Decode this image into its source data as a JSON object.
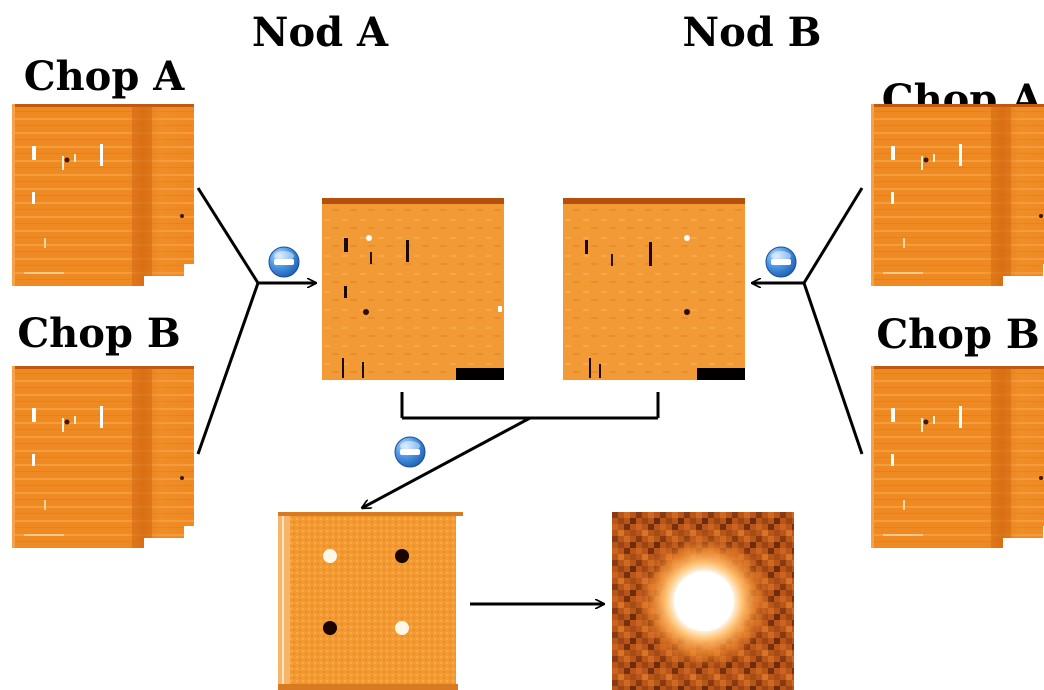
{
  "labels": {
    "nod_a": "Nod A",
    "nod_b": "Nod B",
    "chop_a": "Chop A",
    "chop_b": "Chop B"
  },
  "colors": {
    "frame": "#ef8a22",
    "frame_dark": "#c55e10",
    "diff_bg": "#f29a36",
    "psf_bg": "#c05a1a",
    "minus_blue": "#2f7fd6",
    "line": "#000000"
  },
  "icons": {
    "minus": "minus-circle-icon"
  }
}
